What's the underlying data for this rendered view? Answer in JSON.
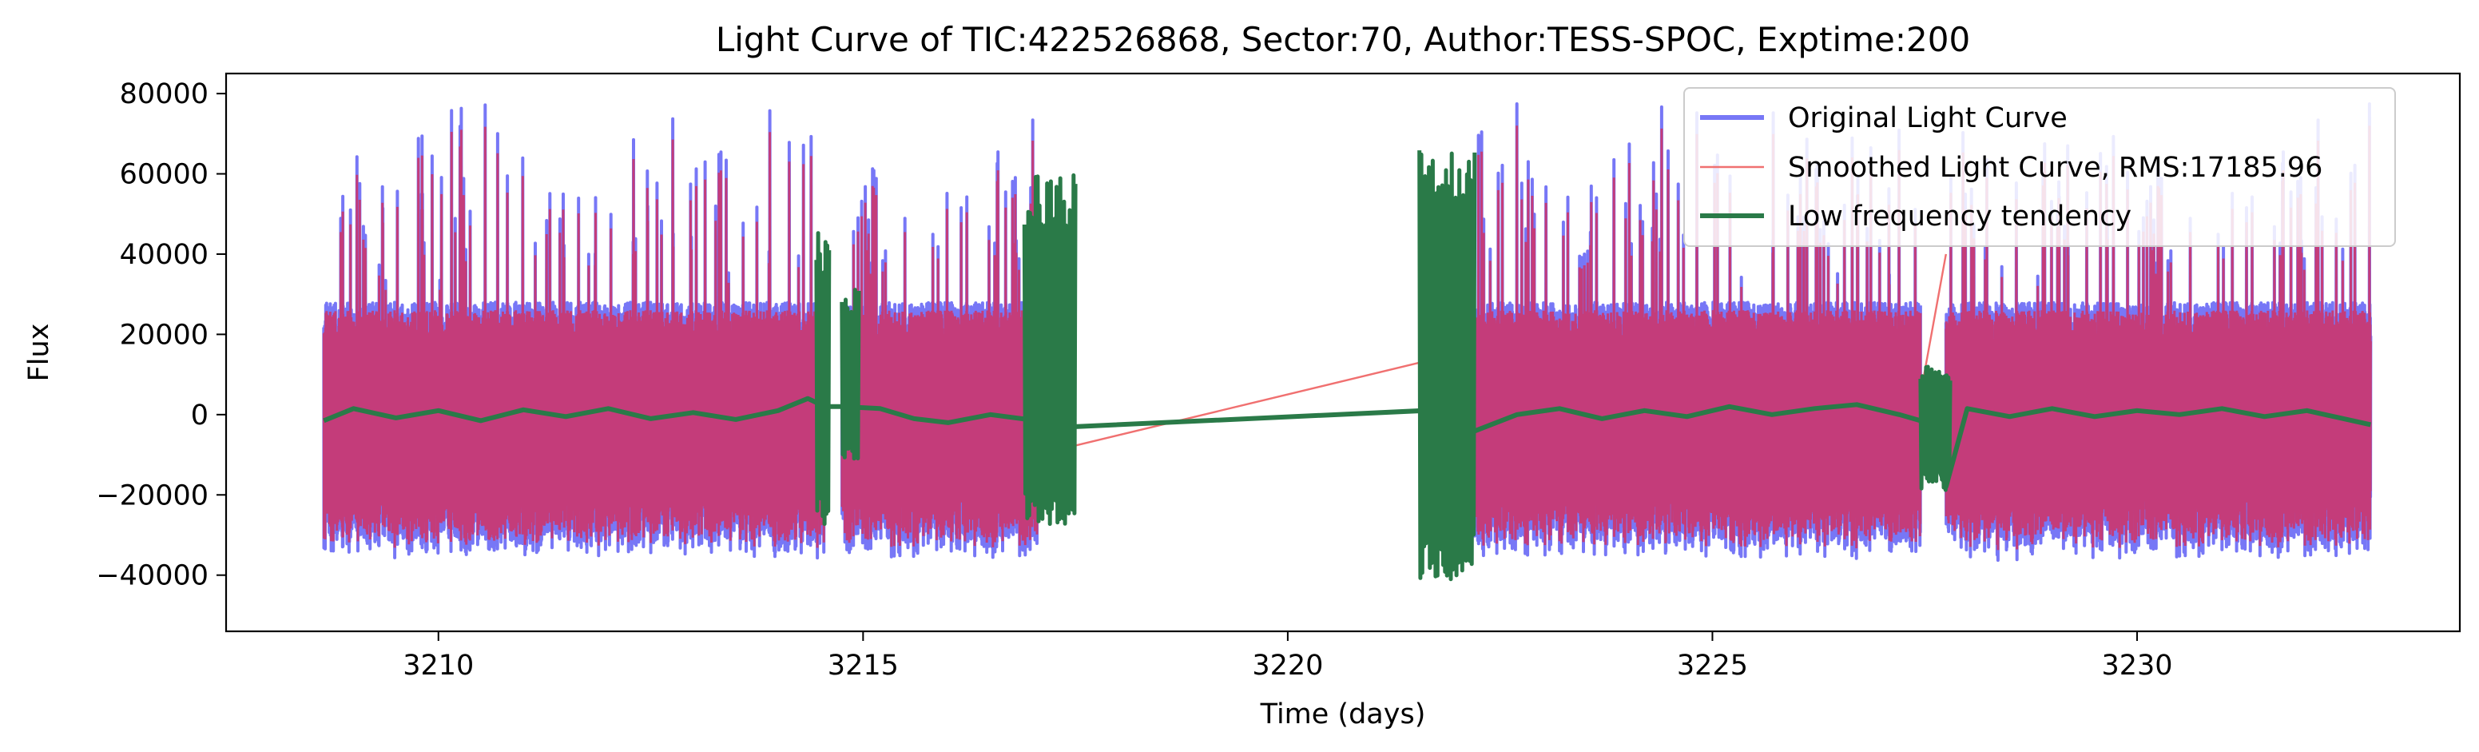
{
  "chart_data": {
    "type": "line",
    "title": "Light Curve of TIC:422526868, Sector:70, Author:TESS-SPOC, Exptime:200",
    "xlabel": "Time (days)",
    "ylabel": "Flux",
    "xlim": [
      3207.5,
      3233.8
    ],
    "ylim": [
      -54000,
      85000
    ],
    "xticks": [
      3210,
      3215,
      3220,
      3225,
      3230
    ],
    "yticks": [
      -40000,
      -20000,
      0,
      20000,
      40000,
      60000,
      80000
    ],
    "xtick_labels": [
      "3210",
      "3215",
      "3220",
      "3225",
      "3230"
    ],
    "ytick_labels": [
      "−40000",
      "−20000",
      "0",
      "20000",
      "40000",
      "60000",
      "80000"
    ],
    "grid": false,
    "legend_position": "top-right",
    "segments": [
      {
        "x_start": 3208.65,
        "x_end": 3214.55
      },
      {
        "x_start": 3214.75,
        "x_end": 3217.05
      },
      {
        "x_start": 3222.15,
        "x_end": 3227.45
      },
      {
        "x_start": 3227.75,
        "x_end": 3232.75
      }
    ],
    "series": [
      {
        "name": "Original Light Curve",
        "color": "#7777f6",
        "style": "thick",
        "envelope_upper_peak": 78000,
        "envelope_lower_peak": -47000
      },
      {
        "name": "Smoothed Light Curve, RMS:17185.96",
        "color": "#f07070",
        "style": "thin",
        "fill_color": "#c43c7a",
        "bridge_points": [
          [
            3217.05,
            -10000
          ],
          [
            3222.15,
            16000
          ],
          [
            3227.45,
            5000
          ],
          [
            3227.75,
            40000
          ]
        ]
      },
      {
        "name": "Low frequency tendency",
        "color": "#2a7a48",
        "style": "thick",
        "points": [
          [
            3208.65,
            -1500
          ],
          [
            3209.0,
            1500
          ],
          [
            3209.5,
            -800
          ],
          [
            3210.0,
            1000
          ],
          [
            3210.5,
            -1500
          ],
          [
            3211.0,
            1200
          ],
          [
            3211.5,
            -500
          ],
          [
            3212.0,
            1500
          ],
          [
            3212.5,
            -1000
          ],
          [
            3213.0,
            500
          ],
          [
            3213.5,
            -1200
          ],
          [
            3214.0,
            1000
          ],
          [
            3214.35,
            4000
          ],
          [
            3214.55,
            2000
          ],
          [
            3214.75,
            2000
          ],
          [
            3215.2,
            1500
          ],
          [
            3215.6,
            -1000
          ],
          [
            3216.0,
            -2000
          ],
          [
            3216.5,
            0
          ],
          [
            3217.05,
            -1500
          ],
          [
            3217.5,
            -3000
          ],
          [
            3221.6,
            1000
          ],
          [
            3222.15,
            -4500
          ],
          [
            3222.7,
            0
          ],
          [
            3223.2,
            1500
          ],
          [
            3223.7,
            -1000
          ],
          [
            3224.2,
            1000
          ],
          [
            3224.7,
            -500
          ],
          [
            3225.2,
            2000
          ],
          [
            3225.7,
            0
          ],
          [
            3226.2,
            1500
          ],
          [
            3226.7,
            2500
          ],
          [
            3227.2,
            0
          ],
          [
            3227.45,
            -1500
          ],
          [
            3227.75,
            -18000
          ],
          [
            3228.0,
            1500
          ],
          [
            3228.5,
            -500
          ],
          [
            3229.0,
            1500
          ],
          [
            3229.5,
            -500
          ],
          [
            3230.0,
            1000
          ],
          [
            3230.5,
            0
          ],
          [
            3231.0,
            1500
          ],
          [
            3231.5,
            -500
          ],
          [
            3232.0,
            1000
          ],
          [
            3232.75,
            -2500
          ]
        ],
        "oscillation_bursts": [
          {
            "x_start": 3214.45,
            "x_end": 3214.6,
            "low": -28000,
            "high": 48000
          },
          {
            "x_start": 3214.75,
            "x_end": 3214.95,
            "low": -11000,
            "high": 32000
          },
          {
            "x_start": 3216.9,
            "x_end": 3217.5,
            "low": -28000,
            "high": 60000
          },
          {
            "x_start": 3221.55,
            "x_end": 3222.2,
            "low": -41000,
            "high": 68000
          },
          {
            "x_start": 3227.45,
            "x_end": 3227.8,
            "low": -19000,
            "high": 12000
          }
        ]
      }
    ]
  }
}
